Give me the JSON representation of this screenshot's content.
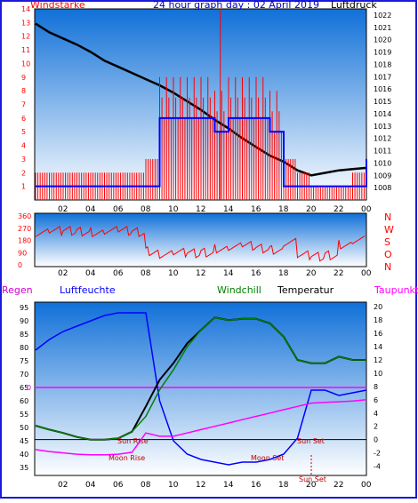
{
  "title": "24 hour graph day : 02 April 2019",
  "colors": {
    "frame": "#1a1adc",
    "wind": "#ff0000",
    "gust": "#0000ff",
    "pressure": "#000000",
    "humidity": "#0000ff",
    "windchill": "#008000",
    "temperature": "#000000",
    "dewpoint": "#ff00ff",
    "sky_top": "#1070d8",
    "sky_bottom": "#ffffff"
  },
  "x_tick_labels": [
    "02",
    "04",
    "06",
    "08",
    "10",
    "12",
    "14",
    "16",
    "18",
    "20",
    "22",
    "00"
  ],
  "chart_data": [
    {
      "type": "line",
      "panel": "wind-pressure",
      "labels": {
        "left": "Windstärke",
        "right": "Luftdruck"
      },
      "left_ticks": [
        "1",
        "2",
        "3",
        "4",
        "5",
        "6",
        "7",
        "8",
        "9",
        "10",
        "11",
        "12",
        "13",
        "14"
      ],
      "right_ticks": [
        "1008",
        "1009",
        "1010",
        "1011",
        "1012",
        "1013",
        "1014",
        "1015",
        "1016",
        "1017",
        "1018",
        "1019",
        "1020",
        "1021",
        "1022"
      ],
      "ylim_left": [
        0,
        14
      ],
      "ylim_right": [
        1007,
        1022.5
      ],
      "x_hours": [
        0,
        1,
        2,
        3,
        4,
        5,
        6,
        7,
        8,
        9,
        10,
        11,
        12,
        13,
        14,
        15,
        16,
        17,
        18,
        19,
        20,
        21,
        22,
        23,
        24
      ],
      "series": [
        {
          "id": "pressure",
          "axis": "right",
          "values": [
            1021.3,
            1020.6,
            1020.1,
            1019.6,
            1019.0,
            1018.3,
            1017.8,
            1017.3,
            1016.8,
            1016.3,
            1015.7,
            1015.0,
            1014.3,
            1013.5,
            1012.8,
            1012.0,
            1011.3,
            1010.6,
            1010.1,
            1009.4,
            1009.0,
            1009.2,
            1009.4,
            1009.5,
            1009.6
          ]
        },
        {
          "id": "wind",
          "axis": "left",
          "values": [
            2,
            2,
            2,
            2,
            2,
            2,
            2,
            2,
            3,
            9,
            9,
            9,
            9,
            8,
            9,
            9,
            9,
            8,
            3,
            2,
            1,
            1,
            1,
            2,
            5
          ]
        },
        {
          "id": "gust",
          "axis": "left",
          "values": [
            1,
            1,
            1,
            1,
            1,
            1,
            1,
            1,
            1,
            6,
            6,
            6,
            6,
            5,
            6,
            6,
            6,
            5,
            1,
            1,
            1,
            1,
            1,
            1,
            3
          ]
        }
      ]
    },
    {
      "type": "scatter",
      "panel": "wind-direction",
      "labels": {
        "right": [
          "N",
          "W",
          "S",
          "O",
          "N"
        ]
      },
      "left_ticks": [
        "360",
        "270",
        "180",
        "90",
        "0"
      ],
      "ylim": [
        0,
        360
      ],
      "x_hours": [
        0,
        1,
        2,
        3,
        4,
        5,
        6,
        7,
        8,
        9,
        10,
        11,
        12,
        13,
        14,
        15,
        16,
        17,
        18,
        19,
        20,
        21,
        22,
        23,
        24
      ],
      "series": [
        {
          "id": "direction",
          "values": [
            240,
            250,
            250,
            245,
            240,
            250,
            250,
            240,
            100,
            80,
            90,
            85,
            90,
            120,
            130,
            140,
            120,
            110,
            170,
            70,
            60,
            70,
            150,
            180,
            250
          ]
        }
      ]
    },
    {
      "type": "line",
      "panel": "humidity-temperature",
      "labels": {
        "left_top": "Regen",
        "humidity": "Luftfeuchte",
        "windchill": "Windchill",
        "temperature": "Temperatur",
        "dewpoint": "Taupunkt",
        "rain_zero": "0"
      },
      "left_ticks": [
        "35",
        "40",
        "45",
        "50",
        "55",
        "60",
        "65",
        "70",
        "75",
        "80",
        "85",
        "90",
        "95"
      ],
      "right_ticks": [
        "-4",
        "-2",
        "0",
        "2",
        "4",
        "6",
        "8",
        "10",
        "12",
        "14",
        "16",
        "18",
        "20"
      ],
      "ylim_left": [
        32,
        97
      ],
      "ylim_right": [
        -5.4,
        20.7
      ],
      "rain_zero_pct": 65,
      "annotations": [
        "Sun Rise",
        "Moon Rise",
        "Moon Set",
        "Sun Set",
        "Sun Set"
      ],
      "x_hours": [
        0,
        1,
        2,
        3,
        4,
        5,
        6,
        7,
        8,
        9,
        10,
        11,
        12,
        13,
        14,
        15,
        16,
        17,
        18,
        19,
        20,
        21,
        22,
        23,
        24
      ],
      "series": [
        {
          "id": "humidity",
          "axis": "left",
          "values": [
            79,
            83,
            86,
            88,
            90,
            92,
            93,
            93,
            93,
            60,
            45,
            40,
            38,
            37,
            36,
            37,
            37,
            38,
            40,
            46,
            64,
            64,
            62,
            63,
            64
          ]
        },
        {
          "id": "temperature",
          "axis": "right",
          "values": [
            2.1,
            1.5,
            1.0,
            0.4,
            0.0,
            0.0,
            0.2,
            1.2,
            5.0,
            9.0,
            11.5,
            14.5,
            16.5,
            18.4,
            18.0,
            18.2,
            18.2,
            17.5,
            15.5,
            12.0,
            11.5,
            11.5,
            12.5,
            12.0,
            12.0
          ]
        },
        {
          "id": "windchill",
          "axis": "right",
          "values": [
            2.1,
            1.5,
            1.0,
            0.4,
            0.0,
            0.0,
            0.2,
            1.2,
            3.5,
            7.5,
            10.5,
            14.0,
            16.5,
            18.4,
            18.0,
            18.2,
            18.2,
            17.5,
            15.5,
            12.0,
            11.5,
            11.5,
            12.5,
            12.0,
            12.0
          ]
        },
        {
          "id": "dewpoint",
          "axis": "right",
          "values": [
            -1.5,
            -1.8,
            -2.0,
            -2.2,
            -2.3,
            -2.3,
            -2.2,
            -1.9,
            1.0,
            0.5,
            0.5,
            1.0,
            1.5,
            2.0,
            2.5,
            3.0,
            3.5,
            4.0,
            4.5,
            5.0,
            5.5,
            5.6,
            5.7,
            5.8,
            6.0
          ]
        }
      ]
    }
  ]
}
